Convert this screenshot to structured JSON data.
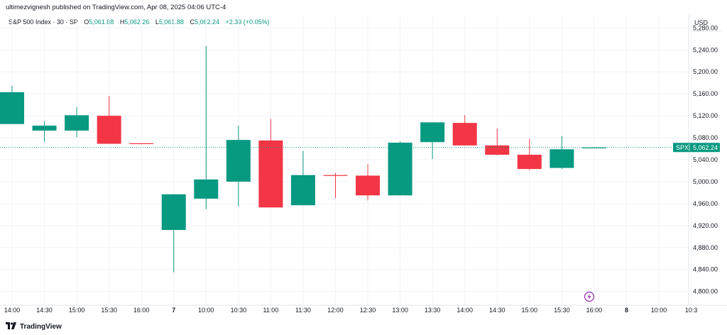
{
  "header": {
    "publish_text": "ultimezvignesh published on TradingView.com, Apr 08, 2025 04:06 UTC-4"
  },
  "legend": {
    "symbol": "S&P 500 Index · 30 · SP",
    "o_label": "O",
    "o_value": "5,061.88",
    "h_label": "H",
    "h_value": "5,062.26",
    "l_label": "L",
    "l_value": "5,061.88",
    "c_label": "C",
    "c_value": "5,062.24",
    "change": "+2.39 (+0.05%)"
  },
  "currency": "USD",
  "current_price": {
    "ticker": "SPX",
    "value": "5,062.24",
    "price": 5062.24
  },
  "footer": {
    "brand": "TradingView"
  },
  "colors": {
    "up": "#089981",
    "down": "#f23645",
    "grid": "#f0f3fa",
    "tick": "#131722",
    "alert": "#9c27b0"
  },
  "icons": {
    "alert": "lightning-alert-icon",
    "logo": "tradingview-logo-icon"
  },
  "chart_data": {
    "type": "candlestick",
    "ylim": [
      4775,
      5305
    ],
    "y_ticks": [
      4800,
      4840,
      4880,
      4920,
      4960,
      5000,
      5040,
      5080,
      5120,
      5160,
      5200,
      5240,
      5280
    ],
    "y_tick_labels": [
      "4,800.00",
      "4,840.00",
      "4,880.00",
      "4,920.00",
      "4,960.00",
      "5,000.00",
      "5,040.00",
      "5,080.00",
      "5,120.00",
      "5,160.00",
      "5,200.00",
      "5,240.00",
      "5,280.00"
    ],
    "x_tick_labels": [
      "14:00",
      "14:30",
      "15:00",
      "15:30",
      "16:00",
      "7",
      "10:00",
      "10:30",
      "11:00",
      "11:30",
      "12:00",
      "12:30",
      "13:00",
      "13:30",
      "14:00",
      "14:30",
      "15:00",
      "15:30",
      "16:00",
      "8",
      "10:00",
      "10:3"
    ],
    "candles": [
      {
        "o": 5105,
        "h": 5175,
        "l": 5105,
        "c": 5163
      },
      {
        "o": 5093,
        "h": 5110,
        "l": 5072,
        "c": 5102
      },
      {
        "o": 5093,
        "h": 5136,
        "l": 5081,
        "c": 5121
      },
      {
        "o": 5120,
        "h": 5156,
        "l": 5072,
        "c": 5069
      },
      {
        "o": 5070,
        "h": 5070,
        "l": 5068,
        "c": 5069
      },
      {
        "o": 4912,
        "h": 4977,
        "l": 4835,
        "c": 4977
      },
      {
        "o": 4969,
        "h": 5247,
        "l": 4950,
        "c": 5004
      },
      {
        "o": 5000,
        "h": 5102,
        "l": 4955,
        "c": 5076
      },
      {
        "o": 5075,
        "h": 5114,
        "l": 4953,
        "c": 4953
      },
      {
        "o": 4957,
        "h": 5056,
        "l": 4957,
        "c": 5012
      },
      {
        "o": 5012,
        "h": 5016,
        "l": 4970,
        "c": 5011
      },
      {
        "o": 5011,
        "h": 5032,
        "l": 4966,
        "c": 4975
      },
      {
        "o": 4975,
        "h": 5073,
        "l": 4975,
        "c": 5071
      },
      {
        "o": 5072,
        "h": 5108,
        "l": 5041,
        "c": 5108
      },
      {
        "o": 5107,
        "h": 5121,
        "l": 5066,
        "c": 5066
      },
      {
        "o": 5066,
        "h": 5097,
        "l": 5048,
        "c": 5049
      },
      {
        "o": 5049,
        "h": 5078,
        "l": 5021,
        "c": 5023
      },
      {
        "o": 5025,
        "h": 5083,
        "l": 5023,
        "c": 5059
      },
      {
        "o": 5061.88,
        "h": 5062.26,
        "l": 5061.88,
        "c": 5062.24
      }
    ]
  }
}
